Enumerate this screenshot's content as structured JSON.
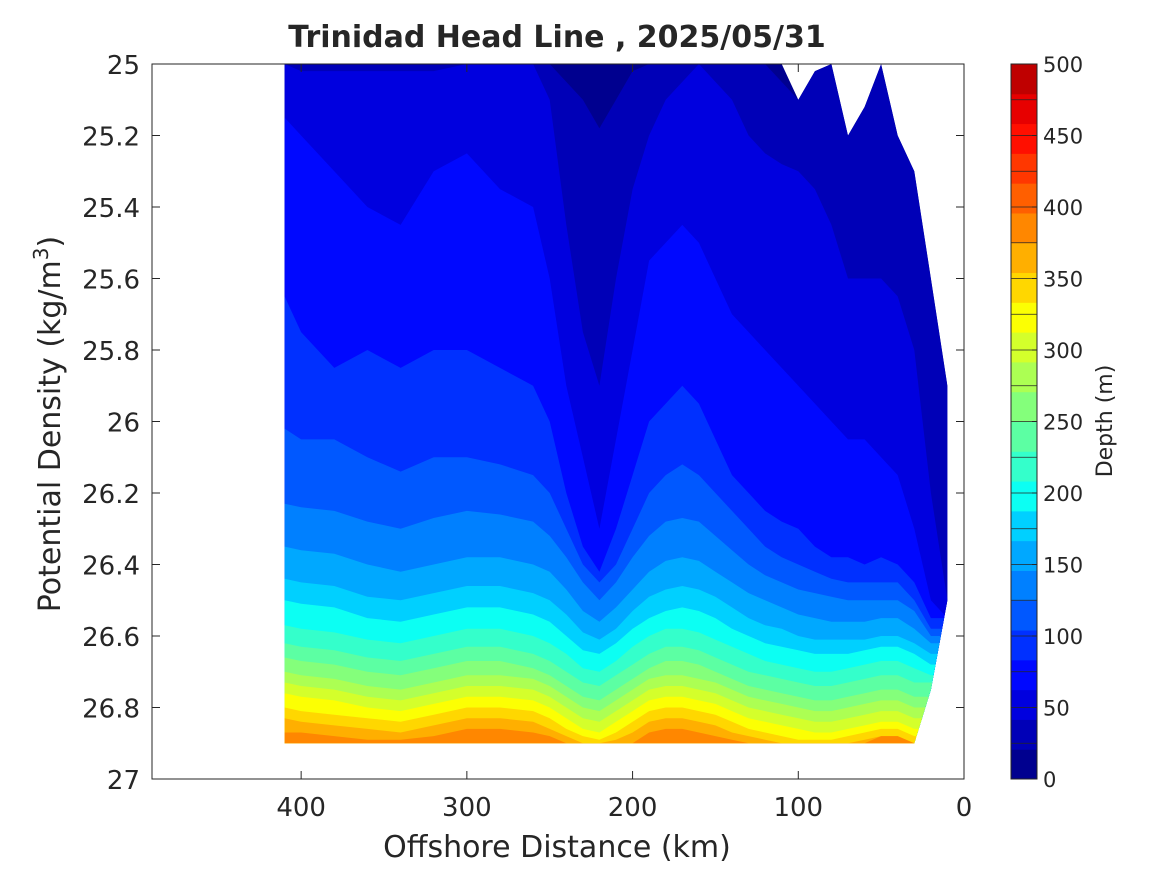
{
  "chart_data": {
    "type": "contour",
    "title": "Trinidad Head Line , 2025/05/31",
    "xlabel": "Offshore Distance (km)",
    "ylabel_main": "Potential Density (kg/m",
    "ylabel_sup": "3",
    "ylabel_close": ")",
    "xlim": [
      490,
      0
    ],
    "ylim": [
      25,
      27
    ],
    "x_reversed": true,
    "y_reversed": true,
    "x_ticks": [
      {
        "value": 400,
        "label": "400"
      },
      {
        "value": 300,
        "label": "300"
      },
      {
        "value": 200,
        "label": "200"
      },
      {
        "value": 100,
        "label": "100"
      },
      {
        "value": 0,
        "label": "0"
      }
    ],
    "y_ticks": [
      {
        "value": 25.0,
        "label": "25"
      },
      {
        "value": 25.2,
        "label": "25.2"
      },
      {
        "value": 25.4,
        "label": "25.4"
      },
      {
        "value": 25.6,
        "label": "25.6"
      },
      {
        "value": 25.8,
        "label": "25.8"
      },
      {
        "value": 26.0,
        "label": "26"
      },
      {
        "value": 26.2,
        "label": "26.2"
      },
      {
        "value": 26.4,
        "label": "26.4"
      },
      {
        "value": 26.6,
        "label": "26.6"
      },
      {
        "value": 26.8,
        "label": "26.8"
      },
      {
        "value": 27.0,
        "label": "27"
      }
    ],
    "colorbar": {
      "label": "Depth (m)",
      "range": [
        0,
        500
      ],
      "interval": 25,
      "tick_labels": [
        "0",
        "50",
        "100",
        "150",
        "200",
        "250",
        "300",
        "350",
        "400",
        "450",
        "500"
      ],
      "colors": [
        "#00008f",
        "#0000b7",
        "#0000df",
        "#0008ff",
        "#0030ff",
        "#0058ff",
        "#0080ff",
        "#00a8ff",
        "#00d0ff",
        "#0cfff3",
        "#34ffcb",
        "#5cffa3",
        "#84ff7b",
        "#acff53",
        "#d4ff2b",
        "#fcff03",
        "#ffd700",
        "#ffaf00",
        "#ff8700",
        "#ff5f00",
        "#ff3700",
        "#ff0f00",
        "#e70000",
        "#bf0000"
      ]
    },
    "stations_km": [
      410,
      400,
      380,
      360,
      340,
      320,
      300,
      280,
      260,
      250,
      240,
      230,
      220,
      210,
      200,
      190,
      180,
      170,
      160,
      150,
      140,
      130,
      120,
      110,
      100,
      90,
      80,
      70,
      60,
      50,
      40,
      30,
      20,
      10
    ],
    "data_top_density": [
      25.0,
      25.0,
      25.0,
      25.0,
      25.0,
      25.0,
      25.0,
      25.0,
      25.0,
      25.0,
      25.0,
      25.0,
      25.0,
      25.0,
      25.0,
      25.0,
      25.0,
      25.0,
      25.0,
      25.0,
      25.0,
      25.0,
      25.0,
      25.0,
      25.1,
      25.02,
      25.0,
      25.2,
      25.12,
      25.0,
      25.2,
      25.3,
      25.6,
      25.9
    ],
    "data_bottom_density": [
      26.9,
      26.9,
      26.9,
      26.9,
      26.9,
      26.9,
      26.9,
      26.9,
      26.9,
      26.9,
      26.9,
      26.9,
      26.9,
      26.9,
      26.9,
      26.9,
      26.9,
      26.9,
      26.9,
      26.9,
      26.9,
      26.9,
      26.9,
      26.9,
      26.9,
      26.9,
      26.9,
      26.9,
      26.9,
      26.9,
      26.9,
      26.9,
      26.75,
      26.5
    ],
    "contours": [
      {
        "depth": 25,
        "density": [
          25.0,
          25.0,
          25.0,
          25.0,
          25.0,
          25.0,
          25.0,
          25.0,
          25.0,
          25.0,
          25.05,
          25.1,
          25.18,
          25.1,
          25.02,
          25.0,
          25.0,
          25.0,
          25.0,
          25.0,
          25.0,
          25.0,
          25.0,
          25.05,
          25.1,
          25.02,
          25.0,
          25.2,
          25.12,
          25.0,
          25.2,
          25.3,
          25.6,
          25.9
        ]
      },
      {
        "depth": 50,
        "density": [
          25.0,
          25.02,
          25.02,
          25.02,
          25.02,
          25.02,
          25.0,
          25.0,
          25.0,
          25.1,
          25.45,
          25.75,
          25.9,
          25.6,
          25.35,
          25.2,
          25.1,
          25.05,
          25.0,
          25.05,
          25.1,
          25.2,
          25.25,
          25.28,
          25.3,
          25.35,
          25.45,
          25.6,
          25.6,
          25.6,
          25.65,
          25.8,
          26.2,
          26.5
        ]
      },
      {
        "depth": 75,
        "density": [
          25.15,
          25.2,
          25.3,
          25.4,
          25.45,
          25.3,
          25.25,
          25.35,
          25.4,
          25.6,
          25.9,
          26.1,
          26.3,
          26.05,
          25.8,
          25.55,
          25.5,
          25.45,
          25.5,
          25.6,
          25.7,
          25.75,
          25.8,
          25.85,
          25.9,
          25.95,
          26.0,
          26.05,
          26.05,
          26.1,
          26.15,
          26.3,
          26.5,
          26.55
        ]
      },
      {
        "depth": 100,
        "density": [
          25.65,
          25.75,
          25.85,
          25.8,
          25.85,
          25.8,
          25.8,
          25.85,
          25.9,
          26.0,
          26.2,
          26.35,
          26.42,
          26.3,
          26.15,
          26.0,
          25.95,
          25.9,
          25.95,
          26.05,
          26.15,
          26.2,
          26.25,
          26.28,
          26.3,
          26.35,
          26.38,
          26.38,
          26.4,
          26.38,
          26.4,
          26.45,
          26.55,
          26.55
        ]
      },
      {
        "depth": 125,
        "density": [
          26.02,
          26.05,
          26.05,
          26.1,
          26.14,
          26.1,
          26.1,
          26.12,
          26.15,
          26.2,
          26.3,
          26.4,
          26.45,
          26.4,
          26.3,
          26.2,
          26.15,
          26.12,
          26.15,
          26.2,
          26.25,
          26.3,
          26.35,
          26.38,
          26.4,
          26.42,
          26.44,
          26.45,
          26.45,
          26.45,
          26.45,
          26.5,
          26.58,
          26.58
        ]
      },
      {
        "depth": 150,
        "density": [
          26.23,
          26.24,
          26.25,
          26.28,
          26.3,
          26.27,
          26.25,
          26.26,
          26.28,
          26.32,
          26.38,
          26.45,
          26.5,
          26.45,
          26.38,
          26.32,
          26.28,
          26.27,
          26.28,
          26.32,
          26.36,
          26.4,
          26.43,
          26.45,
          26.47,
          26.48,
          26.49,
          26.5,
          26.5,
          26.5,
          26.5,
          26.53,
          26.6,
          26.6
        ]
      },
      {
        "depth": 175,
        "density": [
          26.35,
          26.36,
          26.37,
          26.4,
          26.42,
          26.4,
          26.38,
          26.38,
          26.4,
          26.42,
          26.47,
          26.53,
          26.56,
          26.52,
          26.47,
          26.42,
          26.39,
          26.38,
          26.39,
          26.42,
          26.45,
          26.48,
          26.5,
          26.52,
          26.54,
          26.55,
          26.56,
          26.56,
          26.56,
          26.55,
          26.55,
          26.58,
          26.62,
          26.62
        ]
      },
      {
        "depth": 200,
        "density": [
          26.44,
          26.45,
          26.46,
          26.49,
          26.5,
          26.48,
          26.46,
          26.46,
          26.48,
          26.5,
          26.54,
          26.59,
          26.61,
          26.58,
          26.53,
          26.49,
          26.47,
          26.46,
          26.47,
          26.49,
          26.52,
          26.55,
          26.57,
          26.58,
          26.6,
          26.61,
          26.61,
          26.61,
          26.61,
          26.6,
          26.6,
          26.62,
          26.65,
          26.65
        ]
      },
      {
        "depth": 225,
        "density": [
          26.5,
          26.51,
          26.52,
          26.55,
          26.56,
          26.54,
          26.52,
          26.52,
          26.54,
          26.56,
          26.6,
          26.64,
          26.65,
          26.62,
          26.58,
          26.55,
          26.53,
          26.52,
          26.53,
          26.55,
          26.58,
          26.6,
          26.62,
          26.63,
          26.64,
          26.65,
          26.65,
          26.65,
          26.64,
          26.63,
          26.63,
          26.65,
          26.68,
          26.68
        ]
      },
      {
        "depth": 250,
        "density": [
          26.57,
          26.58,
          26.59,
          26.61,
          26.62,
          26.6,
          26.58,
          26.58,
          26.6,
          26.62,
          26.65,
          26.69,
          26.7,
          26.67,
          26.63,
          26.6,
          26.58,
          26.58,
          26.59,
          26.61,
          26.63,
          26.65,
          26.67,
          26.68,
          26.69,
          26.7,
          26.7,
          26.69,
          26.68,
          26.67,
          26.67,
          26.69,
          26.71,
          26.71
        ]
      },
      {
        "depth": 275,
        "density": [
          26.62,
          26.63,
          26.64,
          26.66,
          26.67,
          26.65,
          26.63,
          26.63,
          26.65,
          26.67,
          26.7,
          26.73,
          26.74,
          26.71,
          26.68,
          26.65,
          26.63,
          26.63,
          26.64,
          26.66,
          26.68,
          26.7,
          26.71,
          26.72,
          26.73,
          26.74,
          26.74,
          26.73,
          26.72,
          26.71,
          26.71,
          26.73,
          26.73,
          26.73
        ]
      },
      {
        "depth": 300,
        "density": [
          26.66,
          26.67,
          26.68,
          26.7,
          26.71,
          26.69,
          26.67,
          26.67,
          26.69,
          26.71,
          26.74,
          26.77,
          26.78,
          26.75,
          26.72,
          26.69,
          26.67,
          26.67,
          26.68,
          26.7,
          26.72,
          26.74,
          26.75,
          26.76,
          26.77,
          26.78,
          26.78,
          26.77,
          26.76,
          26.75,
          26.75,
          26.77,
          26.77,
          26.77
        ]
      },
      {
        "depth": 325,
        "density": [
          26.7,
          26.71,
          26.72,
          26.74,
          26.75,
          26.73,
          26.71,
          26.71,
          26.72,
          26.74,
          26.77,
          26.8,
          26.81,
          26.78,
          26.75,
          26.72,
          26.71,
          26.71,
          26.72,
          26.73,
          26.75,
          26.77,
          26.78,
          26.79,
          26.8,
          26.81,
          26.81,
          26.8,
          26.79,
          26.78,
          26.78,
          26.8,
          26.8,
          26.8
        ]
      },
      {
        "depth": 350,
        "density": [
          26.73,
          26.74,
          26.75,
          26.77,
          26.78,
          26.76,
          26.74,
          26.74,
          26.75,
          26.77,
          26.8,
          26.83,
          26.84,
          26.81,
          26.78,
          26.75,
          26.74,
          26.74,
          26.75,
          26.76,
          26.78,
          26.8,
          26.81,
          26.82,
          26.83,
          26.84,
          26.84,
          26.83,
          26.82,
          26.81,
          26.81,
          26.83,
          26.83,
          26.83
        ]
      },
      {
        "depth": 375,
        "density": [
          26.76,
          26.77,
          26.78,
          26.8,
          26.81,
          26.79,
          26.77,
          26.77,
          26.78,
          26.8,
          26.83,
          26.86,
          26.87,
          26.84,
          26.81,
          26.78,
          26.77,
          26.77,
          26.78,
          26.79,
          26.81,
          26.83,
          26.84,
          26.85,
          26.86,
          26.87,
          26.87,
          26.86,
          26.85,
          26.84,
          26.84,
          26.86,
          26.86,
          26.86
        ]
      },
      {
        "depth": 400,
        "density": [
          26.8,
          26.81,
          26.82,
          26.83,
          26.84,
          26.82,
          26.8,
          26.8,
          26.81,
          26.83,
          26.86,
          26.88,
          26.89,
          26.87,
          26.84,
          26.81,
          26.8,
          26.8,
          26.81,
          26.82,
          26.84,
          26.86,
          26.87,
          26.88,
          26.89,
          26.89,
          26.89,
          26.88,
          26.87,
          26.86,
          26.86,
          26.88,
          26.88,
          26.88
        ]
      },
      {
        "depth": 425,
        "density": [
          26.83,
          26.84,
          26.85,
          26.86,
          26.87,
          26.85,
          26.83,
          26.83,
          26.84,
          26.86,
          26.88,
          26.9,
          26.9,
          26.89,
          26.87,
          26.84,
          26.83,
          26.83,
          26.84,
          26.85,
          26.87,
          26.88,
          26.89,
          26.9,
          26.9,
          26.9,
          26.9,
          26.9,
          26.89,
          26.88,
          26.88,
          26.9,
          26.9,
          26.9
        ]
      },
      {
        "depth": 450,
        "density": [
          26.87,
          26.87,
          26.88,
          26.89,
          26.89,
          26.88,
          26.86,
          26.86,
          26.87,
          26.88,
          26.9,
          26.9,
          26.9,
          26.9,
          26.9,
          26.87,
          26.86,
          26.86,
          26.87,
          26.88,
          26.89,
          26.9,
          26.9,
          26.9,
          26.9,
          26.9,
          26.9,
          26.9,
          26.9,
          26.88,
          26.88,
          26.9,
          26.9,
          26.9
        ]
      }
    ]
  }
}
